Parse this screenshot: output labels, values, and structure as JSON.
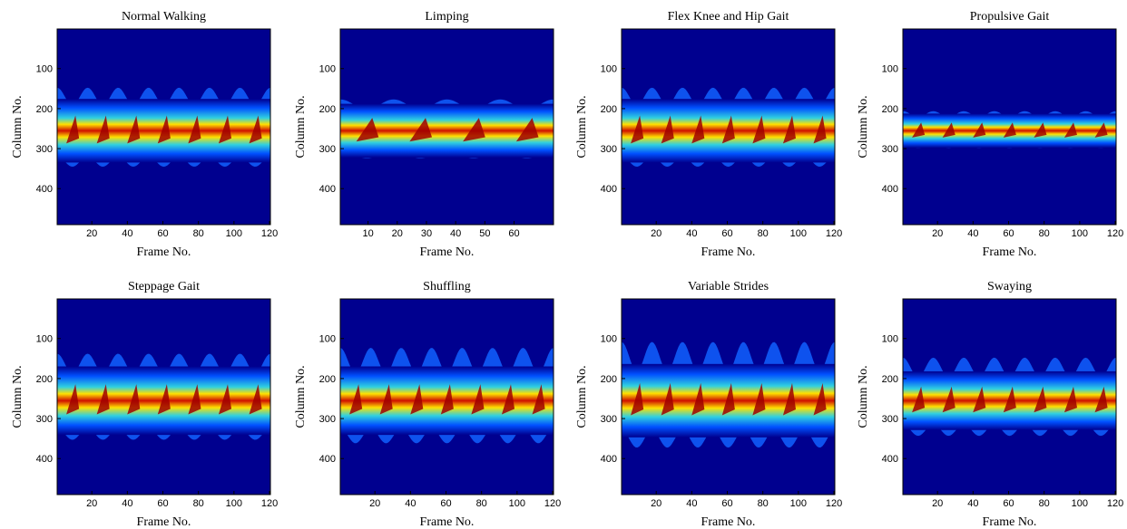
{
  "chart_data": [
    {
      "type": "heatmap",
      "title": "Normal Walking",
      "xlabel": "Frame No.",
      "ylabel": "Column No.",
      "xlim": [
        0.5,
        120.5
      ],
      "xticks": [
        20,
        40,
        60,
        80,
        100,
        120
      ],
      "ylim": [
        1,
        490
      ],
      "yticks": [
        100,
        200,
        300,
        400
      ],
      "y_reversed": true
    },
    {
      "type": "heatmap",
      "title": "Limping",
      "xlabel": "Frame No.",
      "ylabel": "Column No.",
      "xlim": [
        0.5,
        73.5
      ],
      "xticks": [
        10,
        20,
        30,
        40,
        50,
        60
      ],
      "ylim": [
        1,
        490
      ],
      "yticks": [
        100,
        200,
        300,
        400
      ],
      "y_reversed": true
    },
    {
      "type": "heatmap",
      "title": "Flex Knee and Hip Gait",
      "xlabel": "Frame No.",
      "ylabel": "Column No.",
      "xlim": [
        0.5,
        120.5
      ],
      "xticks": [
        20,
        40,
        60,
        80,
        100,
        120
      ],
      "ylim": [
        1,
        490
      ],
      "yticks": [
        100,
        200,
        300,
        400
      ],
      "y_reversed": true
    },
    {
      "type": "heatmap",
      "title": "Propulsive Gait",
      "xlabel": "Frame No.",
      "ylabel": "Column No.",
      "xlim": [
        0.5,
        120.5
      ],
      "xticks": [
        20,
        40,
        60,
        80,
        100,
        120
      ],
      "ylim": [
        1,
        490
      ],
      "yticks": [
        100,
        200,
        300,
        400
      ],
      "y_reversed": true
    },
    {
      "type": "heatmap",
      "title": "Steppage Gait",
      "xlabel": "Frame No.",
      "ylabel": "Column No.",
      "xlim": [
        0.5,
        120.5
      ],
      "xticks": [
        20,
        40,
        60,
        80,
        100,
        120
      ],
      "ylim": [
        1,
        490
      ],
      "yticks": [
        100,
        200,
        300,
        400
      ],
      "y_reversed": true
    },
    {
      "type": "heatmap",
      "title": "Shuffling",
      "xlabel": "Frame No.",
      "ylabel": "Column No.",
      "xlim": [
        0.5,
        120.5
      ],
      "xticks": [
        20,
        40,
        60,
        80,
        100,
        120
      ],
      "ylim": [
        1,
        490
      ],
      "yticks": [
        100,
        200,
        300,
        400
      ],
      "y_reversed": true
    },
    {
      "type": "heatmap",
      "title": "Variable Strides",
      "xlabel": "Frame No.",
      "ylabel": "Column No.",
      "xlim": [
        0.5,
        120.5
      ],
      "xticks": [
        20,
        40,
        60,
        80,
        100,
        120
      ],
      "ylim": [
        1,
        490
      ],
      "yticks": [
        100,
        200,
        300,
        400
      ],
      "y_reversed": true
    },
    {
      "type": "heatmap",
      "title": "Swaying",
      "xlabel": "Frame No.",
      "ylabel": "Column No.",
      "xlim": [
        0.5,
        120.5
      ],
      "xticks": [
        20,
        40,
        60,
        80,
        100,
        120
      ],
      "ylim": [
        1,
        490
      ],
      "yticks": [
        100,
        200,
        300,
        400
      ],
      "y_reversed": true
    }
  ]
}
